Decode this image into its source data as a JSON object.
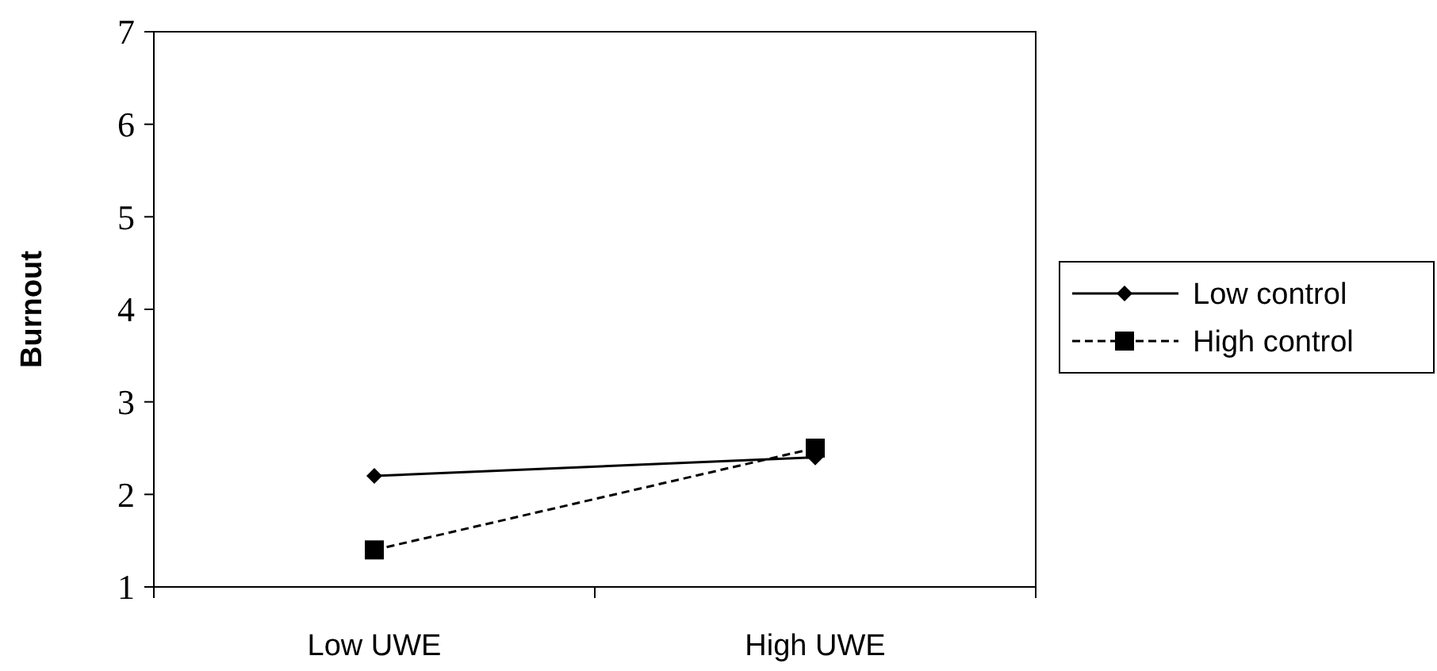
{
  "chart_data": {
    "type": "line",
    "ylabel": "Burnout",
    "categories": [
      "Low UWE",
      "High UWE"
    ],
    "ylim": [
      1,
      7
    ],
    "yticks": [
      1,
      2,
      3,
      4,
      5,
      6,
      7
    ],
    "legend": "right",
    "series": [
      {
        "name": "Low control",
        "color": "#000000",
        "values": [
          2.2,
          2.4
        ],
        "marker": "diamond",
        "line_style": "solid"
      },
      {
        "name": "High control",
        "color": "#000000",
        "values": [
          1.4,
          2.5
        ],
        "marker": "square",
        "line_style": "dashed"
      }
    ]
  }
}
